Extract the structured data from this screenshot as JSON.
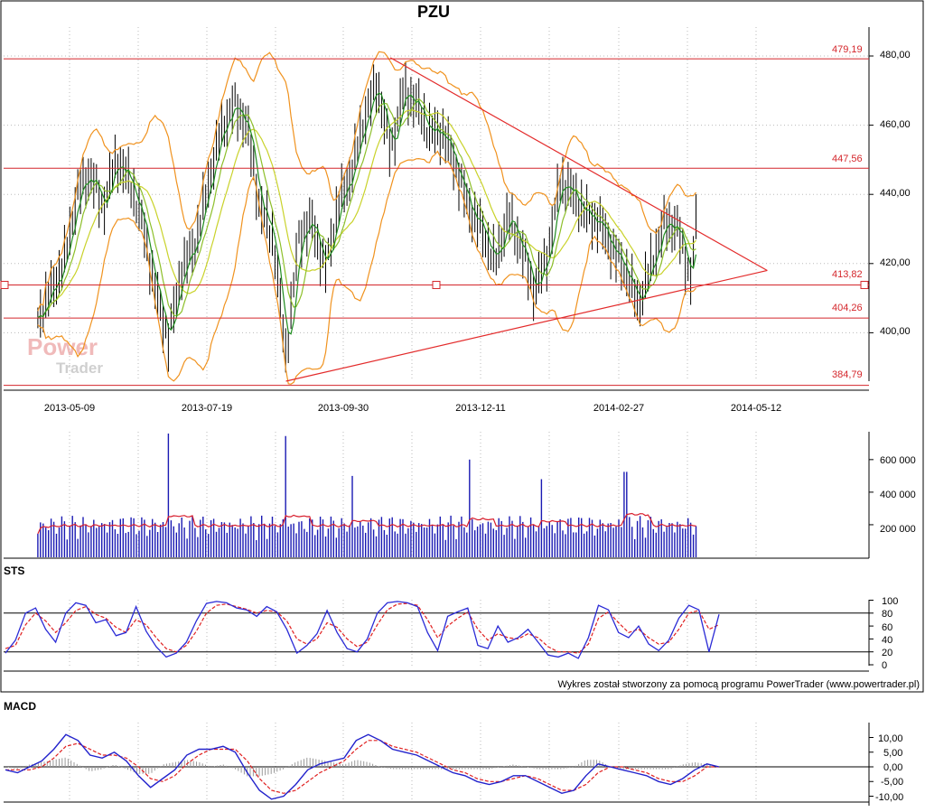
{
  "main": {
    "title": "PZU",
    "xlabels": [
      "2013-05-09",
      "2013-07-19",
      "2013-09-30",
      "2013-12-11",
      "2014-02-27",
      "2014-05-12"
    ],
    "yticks": [
      "480,00",
      "460,00",
      "440,00",
      "420,00",
      "400,00"
    ],
    "level_labels": [
      "479,19",
      "447,56",
      "413,82",
      "404,26",
      "384,79"
    ]
  },
  "volume_panel": {
    "yticks": [
      "600 000",
      "400 000",
      "200 000"
    ]
  },
  "sts_panel": {
    "title": "STS",
    "yticks": [
      "100",
      "80",
      "60",
      "40",
      "20",
      "0"
    ]
  },
  "macd_panel": {
    "title": "MACD",
    "yticks": [
      "10,00",
      "5,00",
      "0,00",
      "-5,00",
      "-10,00"
    ]
  },
  "watermark": {
    "line1": "Power",
    "line2": "Trader"
  },
  "footer": {
    "credit": "Wykres został stworzony za pomocą programu PowerTrader (www.powertrader.pl)"
  },
  "colors": {
    "candle": "#000000",
    "bollinger": "#f0921e",
    "ma_green": "#1f8c1f",
    "ma_yellow": "#c9d22a",
    "level_line": "#d4262b",
    "trend_line": "#e32b2b",
    "volume": "#1a1ab3",
    "volume_ma": "#d81e2d",
    "sts_k": "#2b2bd6",
    "sts_d": "#e02020",
    "macd": "#2222cc",
    "signal": "#e02020",
    "hist": "#999999"
  },
  "chart_data": [
    {
      "type": "candlestick",
      "title": "PZU",
      "x_axis_labels": [
        "2013-05-09",
        "2013-07-19",
        "2013-09-30",
        "2013-12-11",
        "2014-02-27",
        "2014-05-12"
      ],
      "ylim": [
        384,
        484
      ],
      "close_profile": [
        [
          "2013-04-22",
          404
        ],
        [
          "2013-04-29",
          412
        ],
        [
          "2013-05-06",
          420
        ],
        [
          "2013-05-13",
          440
        ],
        [
          "2013-05-20",
          446
        ],
        [
          "2013-05-27",
          436
        ],
        [
          "2013-06-03",
          450
        ],
        [
          "2013-06-10",
          444
        ],
        [
          "2013-06-17",
          432
        ],
        [
          "2013-06-24",
          412
        ],
        [
          "2013-07-01",
          398
        ],
        [
          "2013-07-08",
          418
        ],
        [
          "2013-07-15",
          425
        ],
        [
          "2013-07-22",
          442
        ],
        [
          "2013-07-29",
          458
        ],
        [
          "2013-08-05",
          466
        ],
        [
          "2013-08-12",
          460
        ],
        [
          "2013-08-19",
          436
        ],
        [
          "2013-08-26",
          428
        ],
        [
          "2013-09-02",
          393
        ],
        [
          "2013-09-09",
          428
        ],
        [
          "2013-09-16",
          432
        ],
        [
          "2013-09-23",
          418
        ],
        [
          "2013-09-30",
          437
        ],
        [
          "2013-10-07",
          446
        ],
        [
          "2013-10-14",
          462
        ],
        [
          "2013-10-21",
          472
        ],
        [
          "2013-10-28",
          452
        ],
        [
          "2013-11-04",
          470
        ],
        [
          "2013-11-11",
          466
        ],
        [
          "2013-11-18",
          458
        ],
        [
          "2013-11-25",
          458
        ],
        [
          "2013-12-02",
          448
        ],
        [
          "2013-12-09",
          436
        ],
        [
          "2013-12-16",
          430
        ],
        [
          "2013-12-23",
          420
        ],
        [
          "2013-12-30",
          434
        ],
        [
          "2014-01-06",
          425
        ],
        [
          "2014-01-13",
          412
        ],
        [
          "2014-01-20",
          422
        ],
        [
          "2014-01-27",
          444
        ],
        [
          "2014-02-03",
          440
        ],
        [
          "2014-02-10",
          434
        ],
        [
          "2014-02-17",
          432
        ],
        [
          "2014-02-24",
          424
        ],
        [
          "2014-03-03",
          418
        ],
        [
          "2014-03-10",
          408
        ],
        [
          "2014-03-17",
          420
        ],
        [
          "2014-03-24",
          432
        ],
        [
          "2014-03-31",
          430
        ],
        [
          "2014-04-07",
          415
        ],
        [
          "2014-04-10",
          432
        ]
      ],
      "indicators": [
        "Bollinger Bands",
        "Moving Average (green)",
        "Moving Average (yellow)"
      ],
      "horizontal_levels": [
        479.19,
        447.56,
        413.82,
        404.26,
        384.79
      ],
      "trend_lines": [
        {
          "from": [
            "2013-10-28",
            479.5
          ],
          "to": [
            "2014-05-18",
            418
          ]
        },
        {
          "from": [
            "2013-09-02",
            386
          ],
          "to": [
            "2014-05-18",
            418
          ]
        }
      ]
    },
    {
      "type": "bar",
      "title": "",
      "ylim": [
        0,
        760000
      ],
      "yticks": [
        200000,
        400000,
        600000
      ],
      "volume_typical": 160000,
      "volume_spikes": [
        [
          "2013-07-01",
          760000
        ],
        [
          "2013-09-02",
          745000
        ],
        [
          "2013-12-09",
          600000
        ],
        [
          "2014-03-03",
          525000
        ],
        [
          "2013-10-07",
          500000
        ],
        [
          "2014-01-17",
          480000
        ]
      ],
      "moving_average_range": [
        120000,
        300000
      ]
    },
    {
      "type": "line",
      "title": "STS",
      "ylim": [
        0,
        100
      ],
      "yticks": [
        0,
        20,
        40,
        60,
        80,
        100
      ],
      "reference_lines": [
        20,
        80
      ],
      "series": [
        {
          "name": "",
          "values": [
            18,
            38,
            80,
            88,
            55,
            35,
            80,
            96,
            92,
            65,
            70,
            45,
            50,
            90,
            52,
            28,
            12,
            18,
            35,
            68,
            95,
            98,
            96,
            88,
            85,
            75,
            90,
            82,
            55,
            18,
            30,
            48,
            84,
            50,
            25,
            20,
            40,
            80,
            96,
            98,
            96,
            90,
            50,
            22,
            75,
            82,
            88,
            30,
            25,
            60,
            35,
            42,
            55,
            35,
            15,
            12,
            18,
            10,
            42,
            92,
            85,
            50,
            42,
            60,
            32,
            22,
            38,
            72,
            92,
            85,
            20,
            78
          ]
        },
        {
          "name": "",
          "values": [
            25,
            30,
            62,
            80,
            68,
            50,
            65,
            84,
            90,
            78,
            72,
            58,
            50,
            70,
            62,
            42,
            25,
            20,
            30,
            52,
            80,
            92,
            94,
            90,
            86,
            80,
            84,
            82,
            68,
            40,
            32,
            40,
            65,
            58,
            40,
            28,
            35,
            62,
            85,
            94,
            95,
            92,
            70,
            42,
            60,
            72,
            82,
            55,
            38,
            48,
            42,
            40,
            48,
            42,
            28,
            20,
            20,
            18,
            32,
            72,
            82,
            65,
            50,
            55,
            42,
            32,
            35,
            55,
            80,
            84,
            55,
            62
          ]
        }
      ]
    },
    {
      "type": "line",
      "title": "MACD",
      "ylim": [
        -12,
        12
      ],
      "yticks": [
        10,
        5,
        0,
        -5,
        -10
      ],
      "series": [
        {
          "name": "",
          "values": [
            -1,
            -2,
            0,
            2,
            6,
            11,
            9,
            4,
            3,
            5,
            2,
            -3,
            -7,
            -4,
            -1,
            4,
            6,
            6,
            7,
            5,
            -2,
            -8,
            -11,
            -10,
            -6,
            -1,
            1,
            2,
            3,
            9,
            11,
            9,
            6,
            5,
            4,
            2,
            0,
            -2,
            -3,
            -5,
            -6,
            -5,
            -3,
            -3,
            -5,
            -7,
            -9,
            -8,
            -3,
            1,
            0,
            -1,
            -2,
            -3,
            -5,
            -6,
            -4,
            -1,
            1,
            0
          ]
        },
        {
          "name": "",
          "values": [
            -1,
            -1,
            -1,
            0,
            3,
            7,
            8,
            6,
            4,
            4,
            3,
            0,
            -4,
            -5,
            -3,
            1,
            4,
            6,
            6,
            6,
            2,
            -4,
            -8,
            -9,
            -8,
            -5,
            -2,
            0,
            2,
            6,
            9,
            9,
            7,
            6,
            5,
            3,
            1,
            -1,
            -2,
            -4,
            -5,
            -5,
            -4,
            -3,
            -4,
            -6,
            -8,
            -8,
            -6,
            -2,
            0,
            0,
            -1,
            -2,
            -4,
            -5,
            -5,
            -3,
            0,
            0
          ]
        }
      ]
    }
  ]
}
